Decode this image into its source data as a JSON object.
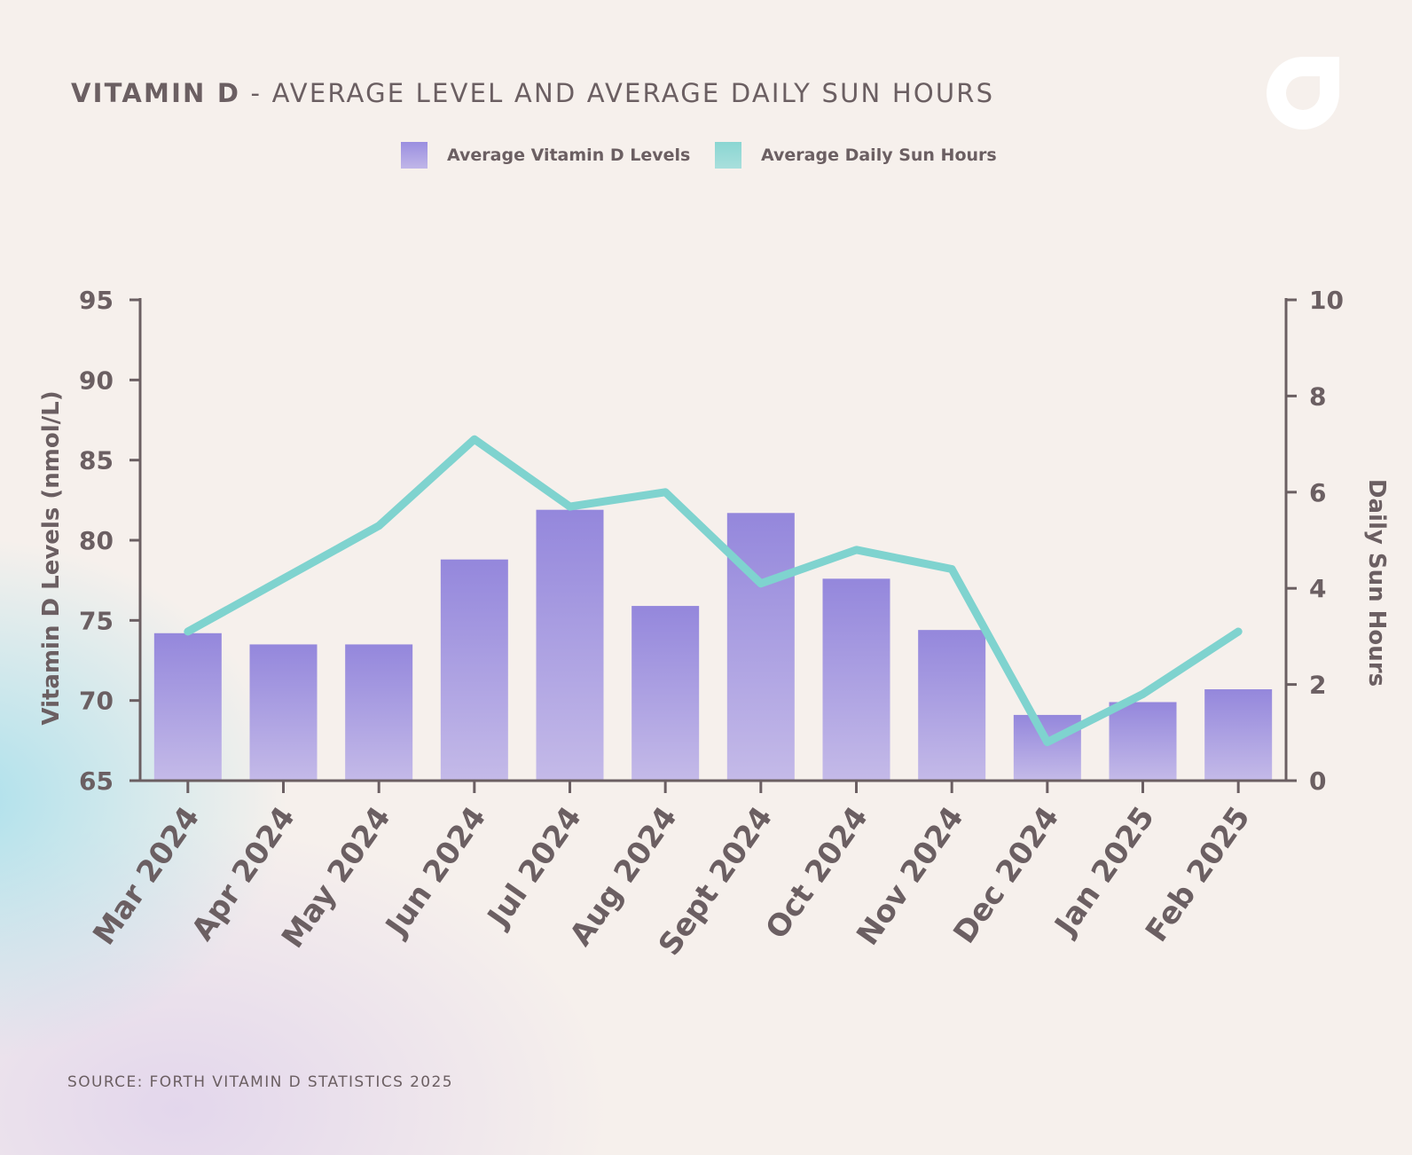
{
  "title": {
    "bold": "VITAMIN D",
    "separator": " - ",
    "rest": "AVERAGE LEVEL AND AVERAGE DAILY SUN HOURS"
  },
  "legend": {
    "bar_label": "Average Vitamin D Levels",
    "line_label": "Average Daily Sun Hours"
  },
  "source": "SOURCE: FORTH VITAMIN D STATISTICS 2025",
  "colors": {
    "bar_top": "#9487dc",
    "bar_bottom": "#c4bae8",
    "line": "#7fd3cf",
    "axis": "#6b5f62",
    "text": "#6b5f62",
    "logo": "#ffffff"
  },
  "logo_icon": "brand-drop-icon",
  "chart_data": {
    "type": "bar+line",
    "categories": [
      "Mar 2024",
      "Apr 2024",
      "May 2024",
      "Jun 2024",
      "Jul 2024",
      "Aug 2024",
      "Sept 2024",
      "Oct 2024",
      "Nov 2024",
      "Dec 2024",
      "Jan 2025",
      "Feb 2025"
    ],
    "series": [
      {
        "name": "Average Vitamin D Levels",
        "type": "bar",
        "axis": "left",
        "values": [
          74.2,
          73.5,
          73.5,
          78.8,
          81.9,
          75.9,
          81.7,
          77.6,
          74.4,
          69.1,
          69.9,
          70.7
        ]
      },
      {
        "name": "Average Daily Sun Hours",
        "type": "line",
        "axis": "right",
        "values": [
          3.1,
          4.2,
          5.3,
          7.1,
          5.7,
          6.0,
          4.1,
          4.8,
          4.4,
          0.8,
          1.8,
          3.1
        ]
      }
    ],
    "ylabel_left": "Vitamin D Levels (nmol/L)",
    "ylabel_right": "Daily Sun Hours",
    "ylim_left": [
      65,
      95
    ],
    "ylim_right": [
      0,
      10
    ],
    "yticks_left": [
      65,
      70,
      75,
      80,
      85,
      90,
      95
    ],
    "yticks_right": [
      0,
      2,
      4,
      6,
      8,
      10
    ]
  }
}
